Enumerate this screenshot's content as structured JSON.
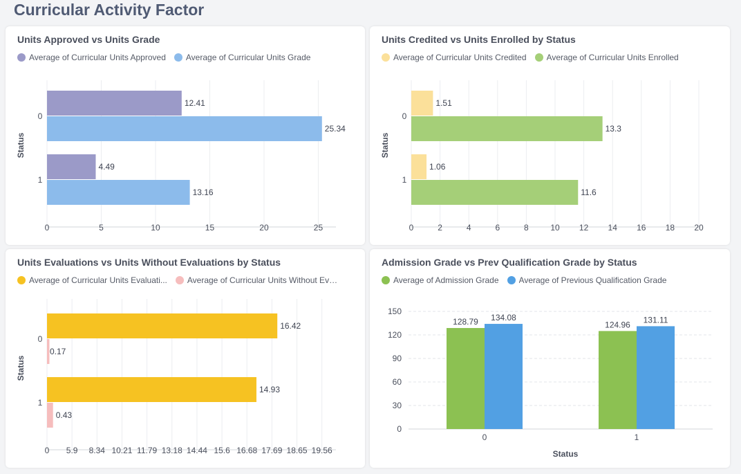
{
  "page": {
    "title": "Curricular Activity Factor"
  },
  "chart_data": [
    {
      "id": "c1",
      "type": "bar",
      "orientation": "horizontal",
      "title": "Units Approved vs Units Grade",
      "ylabel": "Status",
      "categories": [
        "0",
        "1"
      ],
      "series": [
        {
          "name": "Average of Curricular Units Approved",
          "color": "#9b9ac8",
          "values": [
            12.41,
            4.49
          ]
        },
        {
          "name": "Average of Curricular Units Grade",
          "color": "#8cbbeb",
          "values": [
            25.34,
            13.16
          ]
        }
      ],
      "xlim": [
        0,
        26.5
      ],
      "ticks": [
        "0",
        "5",
        "10",
        "15",
        "20",
        "25"
      ]
    },
    {
      "id": "c2",
      "type": "bar",
      "orientation": "horizontal",
      "title": "Units Credited vs Units Enrolled by Status",
      "ylabel": "Status",
      "categories": [
        "0",
        "1"
      ],
      "series": [
        {
          "name": "Average of Curricular Units Credited",
          "color": "#fbe09a",
          "values": [
            1.51,
            1.06
          ]
        },
        {
          "name": "Average of Curricular Units Enrolled",
          "color": "#a5cf78",
          "values": [
            13.3,
            11.6
          ]
        }
      ],
      "xlim": [
        0,
        20
      ],
      "ticks": [
        "0",
        "2",
        "4",
        "6",
        "8",
        "10",
        "12",
        "14",
        "16",
        "18",
        "20"
      ]
    },
    {
      "id": "c3",
      "type": "bar",
      "orientation": "horizontal",
      "title": "Units Evaluations vs Units Without Evaluations by Status",
      "ylabel": "Status",
      "categories": [
        "0",
        "1"
      ],
      "series": [
        {
          "name": "Average of Curricular Units Evaluati...",
          "color": "#f6c222",
          "values": [
            16.42,
            14.93
          ]
        },
        {
          "name": "Average of Curricular Units Without Evaluati...",
          "color": "#f6bdbd",
          "values": [
            0.17,
            0.43
          ]
        }
      ],
      "xlim": [
        0,
        20.5
      ],
      "ticks": [
        "0",
        "5.9",
        "8.34",
        "10.21",
        "11.79",
        "13.18",
        "14.44",
        "15.6",
        "16.68",
        "17.69",
        "18.65",
        "19.56"
      ]
    },
    {
      "id": "c4",
      "type": "bar",
      "orientation": "vertical",
      "title": "Admission Grade vs Prev Qualification Grade by Status",
      "xlabel": "Status",
      "categories": [
        "0",
        "1"
      ],
      "series": [
        {
          "name": "Average of Admission Grade",
          "color": "#8cc152",
          "values": [
            128.79,
            124.96
          ]
        },
        {
          "name": "Average of Previous Qualification Grade",
          "color": "#52a0e3",
          "values": [
            134.08,
            131.11
          ]
        }
      ],
      "ylim": [
        0,
        150
      ],
      "ticks": [
        "0",
        "30",
        "60",
        "90",
        "120",
        "150"
      ]
    }
  ]
}
